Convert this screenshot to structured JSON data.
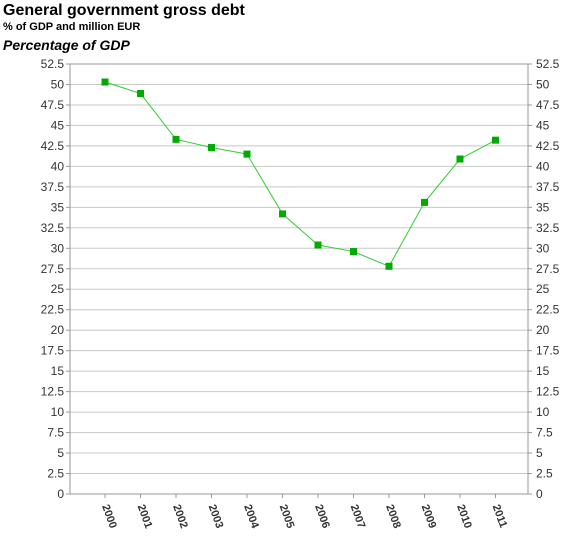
{
  "header": {
    "title": "General government gross debt",
    "subtitle": "% of GDP and million EUR",
    "unit_label": "Percentage of GDP"
  },
  "colors": {
    "series": "#33cc33",
    "marker": "#00aa00",
    "grid": "#c8c8c8",
    "axis": "#999999"
  },
  "chart_data": {
    "type": "line",
    "title": "General government gross debt",
    "subtitle": "% of GDP and million EUR",
    "ylabel": "Percentage of GDP",
    "xlabel": "",
    "categories": [
      "2000",
      "2001",
      "2002",
      "2003",
      "2004",
      "2005",
      "2006",
      "2007",
      "2008",
      "2009",
      "2010",
      "2011"
    ],
    "series": [
      {
        "values": [
          50.3,
          48.9,
          43.3,
          42.3,
          41.5,
          34.2,
          30.4,
          29.6,
          27.8,
          35.6,
          40.9,
          43.2
        ]
      }
    ],
    "ylim": [
      0,
      52.5
    ],
    "yticks": [
      "0",
      "2.5",
      "5",
      "7.5",
      "10",
      "12.5",
      "15",
      "17.5",
      "20",
      "22.5",
      "25",
      "27.5",
      "30",
      "32.5",
      "35",
      "37.5",
      "40",
      "42.5",
      "45",
      "47.5",
      "50",
      "52.5"
    ],
    "grid": true,
    "legend": "none",
    "y_axis_both_sides": true,
    "marker": "square"
  }
}
